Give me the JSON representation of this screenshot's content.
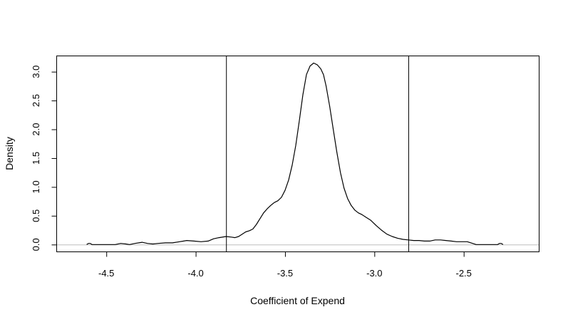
{
  "chart_data": {
    "type": "line",
    "title": "",
    "xlabel": "Coefficient of Expend",
    "ylabel": "Density",
    "xlim": [
      -4.78,
      -2.08
    ],
    "ylim": [
      -0.12,
      3.28
    ],
    "xticks": [
      -4.5,
      -4.0,
      -3.5,
      -3.0,
      -2.5
    ],
    "xtick_labels": [
      "-4.5",
      "-4.0",
      "-3.5",
      "-3.0",
      "-2.5"
    ],
    "yticks": [
      0.0,
      0.5,
      1.0,
      1.5,
      2.0,
      2.5,
      3.0
    ],
    "ytick_labels": [
      "0.0",
      "0.5",
      "1.0",
      "1.5",
      "2.0",
      "2.5",
      "3.0"
    ],
    "grid": false,
    "baseline": {
      "y": 0,
      "color": "#bfbfbf"
    },
    "vertical_lines": [
      -3.83,
      -2.81
    ],
    "series": [
      {
        "color": "#000000",
        "x": [
          -4.61,
          -4.6,
          -4.59,
          -4.58,
          -4.45,
          -4.42,
          -4.39,
          -4.37,
          -4.34,
          -4.3,
          -4.27,
          -4.24,
          -4.21,
          -4.17,
          -4.13,
          -4.09,
          -4.05,
          -4.01,
          -3.97,
          -3.93,
          -3.9,
          -3.87,
          -3.83,
          -3.8,
          -3.78,
          -3.76,
          -3.74,
          -3.72,
          -3.7,
          -3.68,
          -3.66,
          -3.64,
          -3.62,
          -3.6,
          -3.58,
          -3.56,
          -3.54,
          -3.52,
          -3.5,
          -3.48,
          -3.46,
          -3.44,
          -3.42,
          -3.4,
          -3.38,
          -3.36,
          -3.34,
          -3.32,
          -3.3,
          -3.285,
          -3.27,
          -3.25,
          -3.23,
          -3.21,
          -3.19,
          -3.17,
          -3.15,
          -3.13,
          -3.11,
          -3.09,
          -3.07,
          -3.05,
          -3.02,
          -2.99,
          -2.96,
          -2.93,
          -2.9,
          -2.87,
          -2.84,
          -2.81,
          -2.78,
          -2.75,
          -2.72,
          -2.69,
          -2.66,
          -2.63,
          -2.6,
          -2.57,
          -2.54,
          -2.51,
          -2.48,
          -2.45,
          -2.43,
          -2.31,
          -2.3,
          -2.29,
          -2.28
        ],
        "y": [
          0.0,
          0.02,
          0.02,
          0.0,
          0.0,
          0.02,
          0.01,
          0.0,
          0.02,
          0.04,
          0.02,
          0.01,
          0.02,
          0.03,
          0.03,
          0.05,
          0.07,
          0.06,
          0.05,
          0.06,
          0.1,
          0.12,
          0.14,
          0.13,
          0.12,
          0.14,
          0.18,
          0.22,
          0.24,
          0.27,
          0.35,
          0.45,
          0.55,
          0.62,
          0.68,
          0.73,
          0.76,
          0.82,
          0.94,
          1.12,
          1.38,
          1.72,
          2.15,
          2.6,
          2.95,
          3.1,
          3.15,
          3.12,
          3.05,
          2.95,
          2.75,
          2.4,
          2.0,
          1.6,
          1.25,
          0.98,
          0.8,
          0.68,
          0.6,
          0.55,
          0.52,
          0.48,
          0.42,
          0.33,
          0.25,
          0.18,
          0.14,
          0.11,
          0.09,
          0.08,
          0.07,
          0.07,
          0.06,
          0.06,
          0.08,
          0.08,
          0.07,
          0.06,
          0.05,
          0.05,
          0.05,
          0.02,
          0.0,
          0.0,
          0.02,
          0.02,
          0.0
        ]
      }
    ]
  }
}
